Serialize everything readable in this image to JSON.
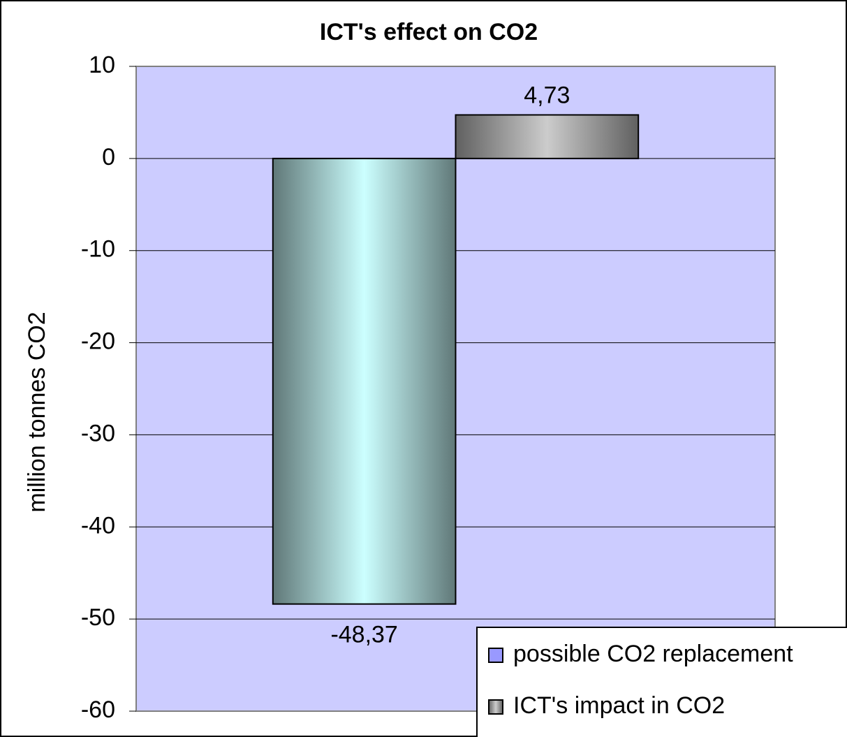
{
  "chart_data": {
    "type": "bar",
    "title": "ICT's effect on CO2",
    "y_label": "million tonnes CO2",
    "categories": [
      null
    ],
    "series": [
      {
        "name": "possible CO2 replacement",
        "color": "#ccffff",
        "legend_color": "#9999ff",
        "values": [
          -48.37
        ],
        "value_labels": [
          "-48,37"
        ]
      },
      {
        "name": "ICT's impact in CO2",
        "color": "#cccccc",
        "values": [
          4.73
        ],
        "value_labels": [
          "4,73"
        ]
      }
    ],
    "ylim": [
      -60,
      10
    ],
    "yticks": [
      -60,
      -50,
      -40,
      -30,
      -20,
      -10,
      0,
      10
    ],
    "grid": true,
    "plot_background": "#ccccff"
  }
}
